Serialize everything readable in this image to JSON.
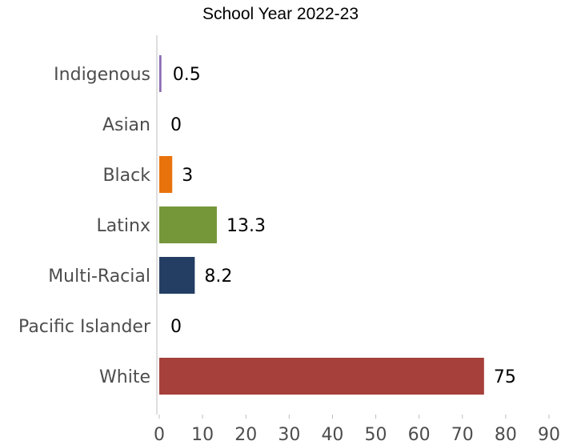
{
  "chart_data": {
    "type": "bar",
    "orientation": "horizontal",
    "title": "School Year 2022-23",
    "xlabel": "",
    "ylabel": "",
    "categories": [
      "Indigenous",
      "Asian",
      "Black",
      "Latinx",
      "Multi-Racial",
      "Pacific Islander",
      "White"
    ],
    "values": [
      0.5,
      0,
      3,
      13.3,
      8.2,
      0,
      75
    ],
    "value_labels": [
      "0.5",
      "0",
      "3",
      "13.3",
      "8.2",
      "0",
      "75"
    ],
    "colors": [
      "#8b6bb1",
      "#999999",
      "#e8730c",
      "#76963a",
      "#243e63",
      "#999999",
      "#a6403a"
    ],
    "xlim": [
      0,
      90
    ],
    "xticks": [
      0,
      10,
      20,
      30,
      40,
      50,
      60,
      70,
      80,
      90
    ],
    "grid": false,
    "legend": "none"
  }
}
